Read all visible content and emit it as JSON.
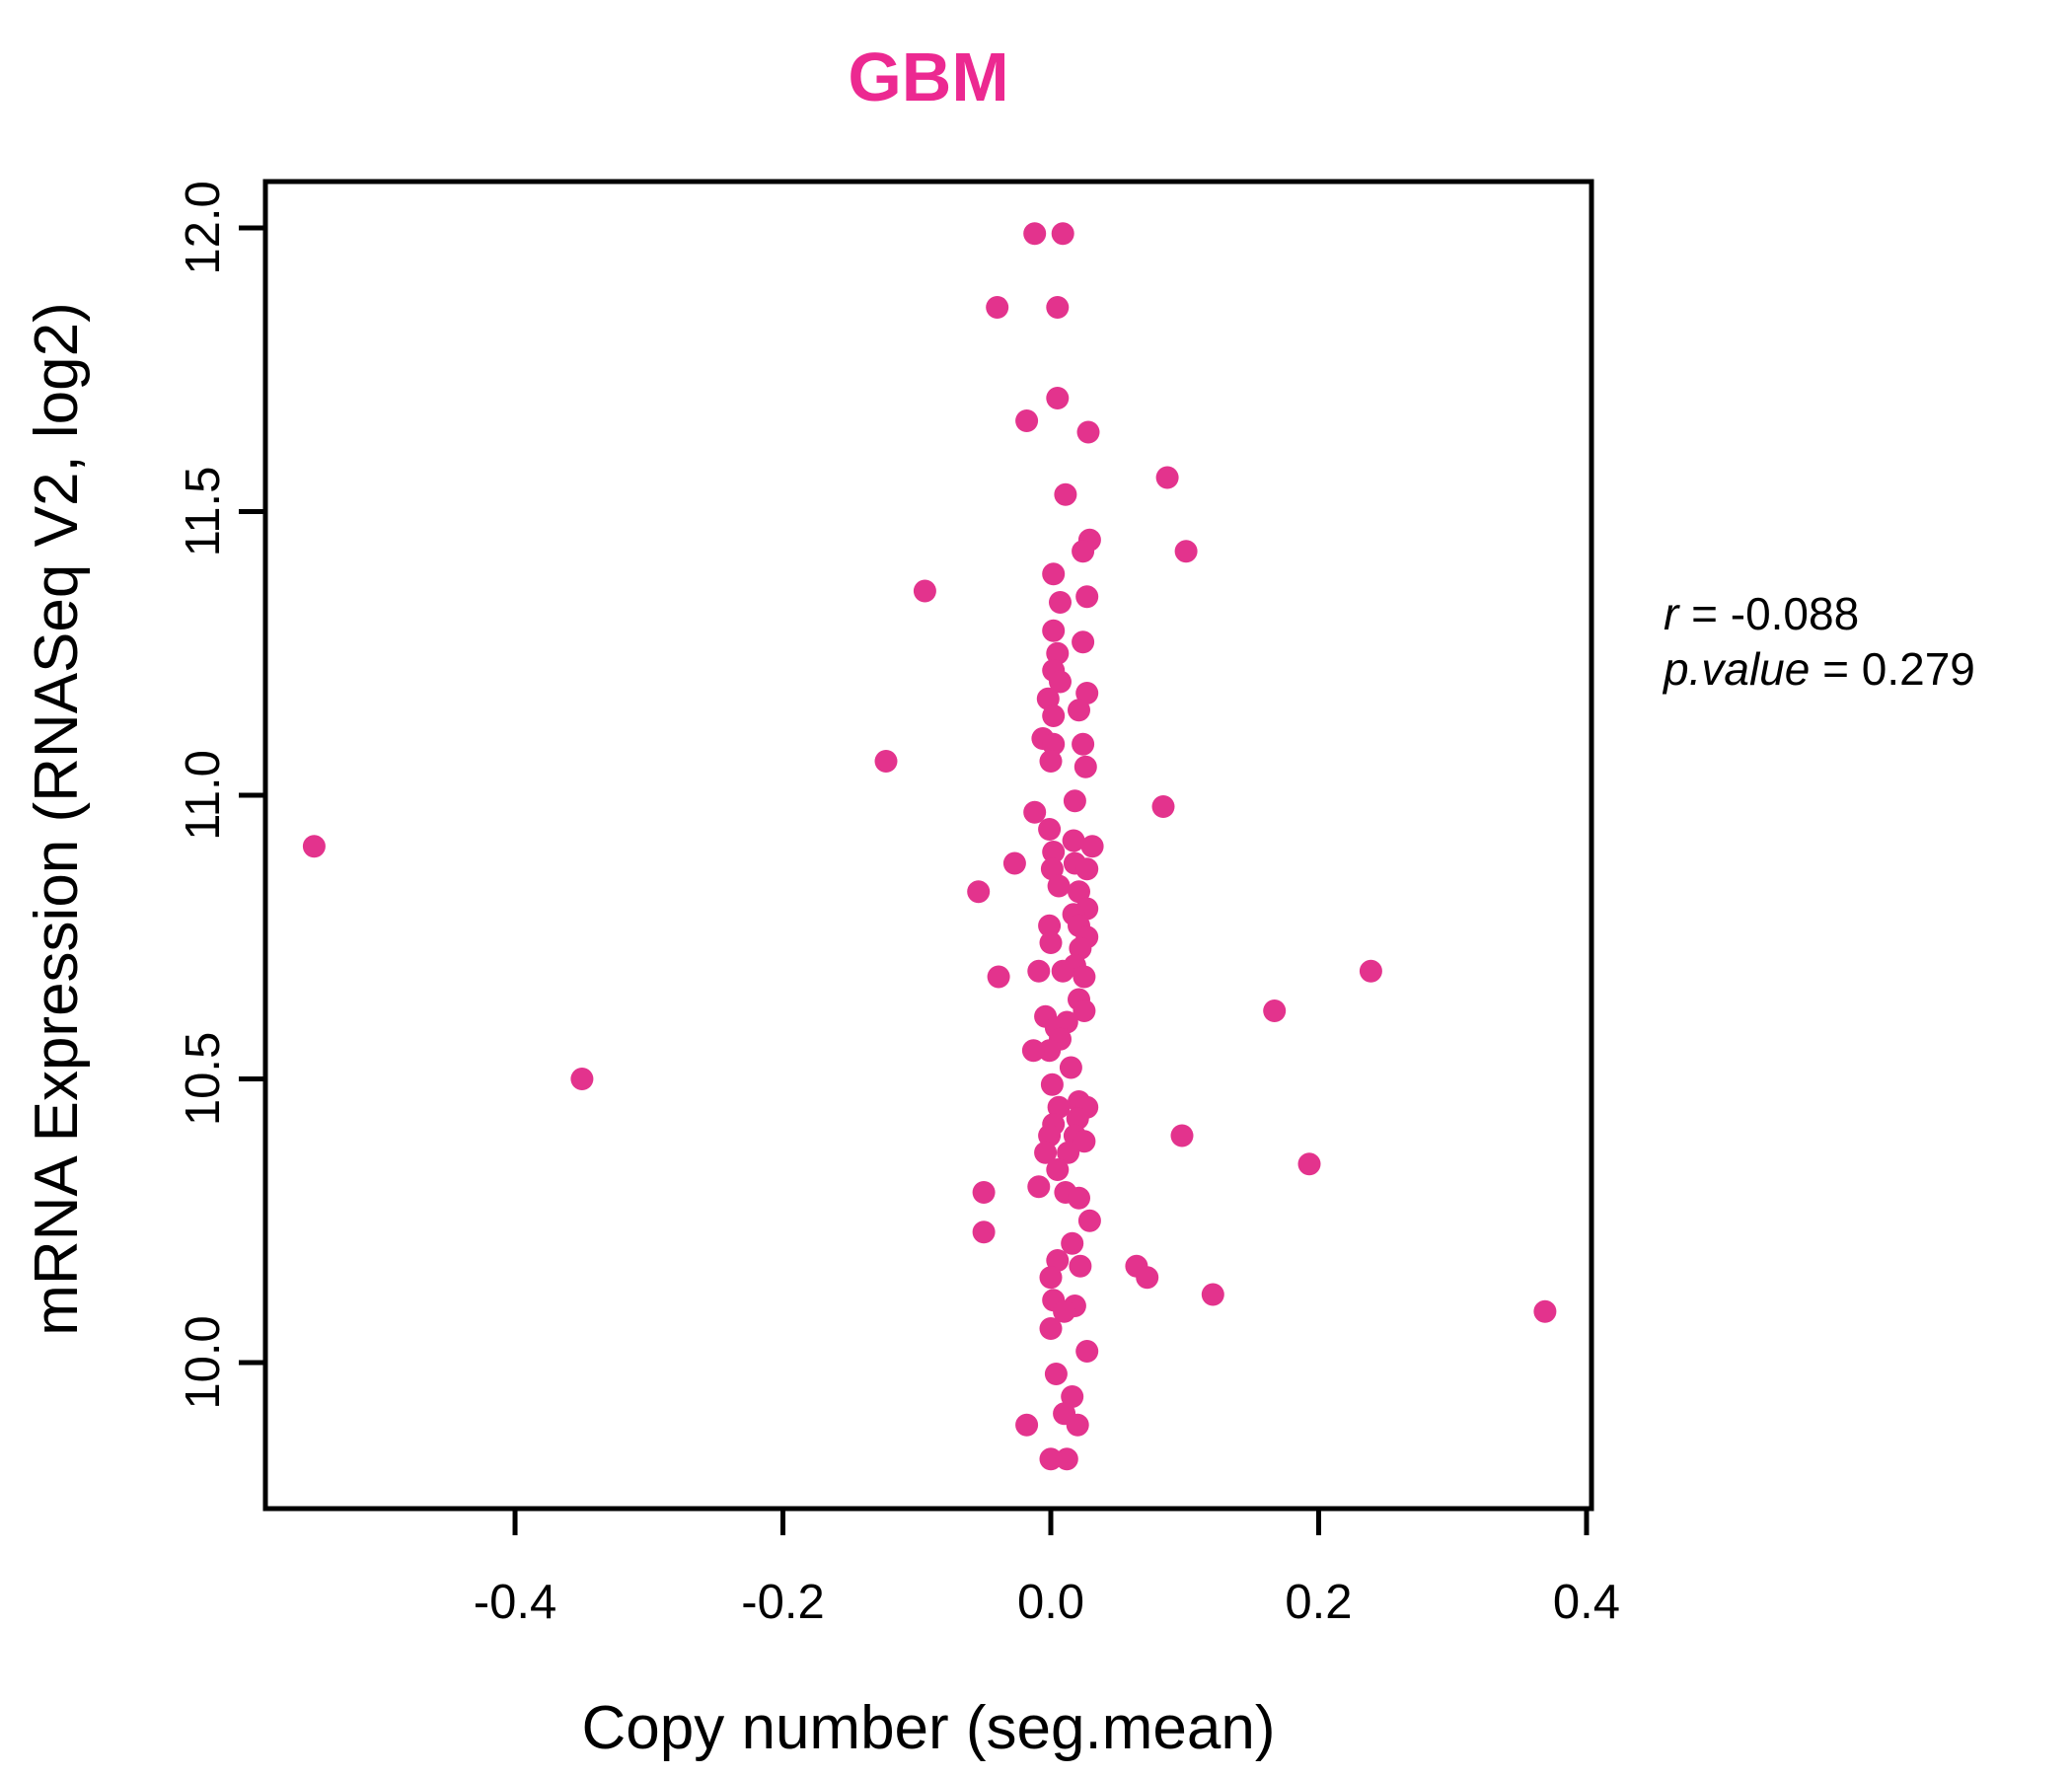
{
  "chart_data": {
    "type": "scatter",
    "title": "GBM",
    "title_color": "#EC2991",
    "point_color": "#E3338D",
    "xlabel": "Copy number (seg.mean)",
    "ylabel": "mRNA Expression (RNASeq V2, log2)",
    "xlim": [
      -0.5864,
      0.4037
    ],
    "ylim": [
      9.7426,
      12.0817
    ],
    "xticks": [
      -0.4,
      -0.2,
      0.0,
      0.2,
      0.4
    ],
    "xtick_labels": [
      "-0.4",
      "-0.2",
      "0.0",
      "0.2",
      "0.4"
    ],
    "yticks": [
      10.0,
      10.5,
      11.0,
      11.5,
      12.0
    ],
    "ytick_labels": [
      "10.0",
      "10.5",
      "11.0",
      "11.5",
      "12.0"
    ],
    "grid": false,
    "legend": "none",
    "annotation": {
      "r_var": "r",
      "r_rest": " = -0.088",
      "p_var": "p.value",
      "p_rest": " = 0.279"
    },
    "stats": {
      "r": -0.088,
      "p_value": 0.279
    },
    "points": [
      [
        -0.012,
        11.99
      ],
      [
        0.009,
        11.99
      ],
      [
        -0.04,
        11.86
      ],
      [
        0.005,
        11.86
      ],
      [
        0.005,
        11.7
      ],
      [
        -0.018,
        11.66
      ],
      [
        0.028,
        11.64
      ],
      [
        0.087,
        11.56
      ],
      [
        0.011,
        11.53
      ],
      [
        0.029,
        11.45
      ],
      [
        0.024,
        11.43
      ],
      [
        0.101,
        11.43
      ],
      [
        0.002,
        11.39
      ],
      [
        -0.094,
        11.36
      ],
      [
        0.027,
        11.35
      ],
      [
        0.007,
        11.34
      ],
      [
        0.002,
        11.29
      ],
      [
        0.024,
        11.27
      ],
      [
        0.005,
        11.25
      ],
      [
        0.002,
        11.22
      ],
      [
        0.007,
        11.2
      ],
      [
        0.027,
        11.18
      ],
      [
        -0.002,
        11.17
      ],
      [
        0.021,
        11.15
      ],
      [
        0.002,
        11.14
      ],
      [
        -0.006,
        11.1
      ],
      [
        0.002,
        11.09
      ],
      [
        0.024,
        11.09
      ],
      [
        -0.123,
        11.06
      ],
      [
        0.0,
        11.06
      ],
      [
        0.026,
        11.05
      ],
      [
        0.018,
        10.99
      ],
      [
        0.084,
        10.98
      ],
      [
        -0.012,
        10.97
      ],
      [
        -0.001,
        10.94
      ],
      [
        0.017,
        10.92
      ],
      [
        0.031,
        10.91
      ],
      [
        -0.55,
        10.91
      ],
      [
        0.002,
        10.9
      ],
      [
        -0.027,
        10.88
      ],
      [
        0.018,
        10.88
      ],
      [
        0.027,
        10.87
      ],
      [
        0.001,
        10.87
      ],
      [
        0.006,
        10.84
      ],
      [
        -0.054,
        10.83
      ],
      [
        0.021,
        10.83
      ],
      [
        0.027,
        10.8
      ],
      [
        0.017,
        10.79
      ],
      [
        -0.001,
        10.77
      ],
      [
        0.021,
        10.77
      ],
      [
        0.027,
        10.75
      ],
      [
        0.0,
        10.74
      ],
      [
        0.022,
        10.73
      ],
      [
        0.018,
        10.7
      ],
      [
        -0.009,
        10.69
      ],
      [
        0.009,
        10.69
      ],
      [
        0.239,
        10.69
      ],
      [
        -0.039,
        10.68
      ],
      [
        0.025,
        10.68
      ],
      [
        0.021,
        10.64
      ],
      [
        0.167,
        10.62
      ],
      [
        0.025,
        10.62
      ],
      [
        -0.004,
        10.61
      ],
      [
        0.012,
        10.6
      ],
      [
        0.004,
        10.59
      ],
      [
        0.007,
        10.57
      ],
      [
        -0.001,
        10.55
      ],
      [
        -0.013,
        10.55
      ],
      [
        0.015,
        10.52
      ],
      [
        -0.35,
        10.5
      ],
      [
        0.001,
        10.49
      ],
      [
        0.021,
        10.46
      ],
      [
        0.027,
        10.45
      ],
      [
        0.006,
        10.45
      ],
      [
        0.02,
        10.43
      ],
      [
        0.002,
        10.42
      ],
      [
        0.098,
        10.4
      ],
      [
        -0.001,
        10.4
      ],
      [
        0.018,
        10.4
      ],
      [
        0.025,
        10.39
      ],
      [
        -0.004,
        10.37
      ],
      [
        0.013,
        10.37
      ],
      [
        0.193,
        10.35
      ],
      [
        0.005,
        10.34
      ],
      [
        -0.009,
        10.31
      ],
      [
        -0.05,
        10.3
      ],
      [
        0.011,
        10.3
      ],
      [
        0.021,
        10.29
      ],
      [
        0.029,
        10.25
      ],
      [
        -0.05,
        10.23
      ],
      [
        0.016,
        10.21
      ],
      [
        0.005,
        10.18
      ],
      [
        0.022,
        10.17
      ],
      [
        0.064,
        10.17
      ],
      [
        0.072,
        10.15
      ],
      [
        0.0,
        10.15
      ],
      [
        0.121,
        10.12
      ],
      [
        0.002,
        10.11
      ],
      [
        0.018,
        10.1
      ],
      [
        0.01,
        10.09
      ],
      [
        0.369,
        10.09
      ],
      [
        0.0,
        10.06
      ],
      [
        0.027,
        10.02
      ],
      [
        0.004,
        9.98
      ],
      [
        0.016,
        9.94
      ],
      [
        0.01,
        9.91
      ],
      [
        0.02,
        9.89
      ],
      [
        -0.018,
        9.89
      ],
      [
        0.0,
        9.83
      ],
      [
        0.012,
        9.83
      ]
    ]
  }
}
